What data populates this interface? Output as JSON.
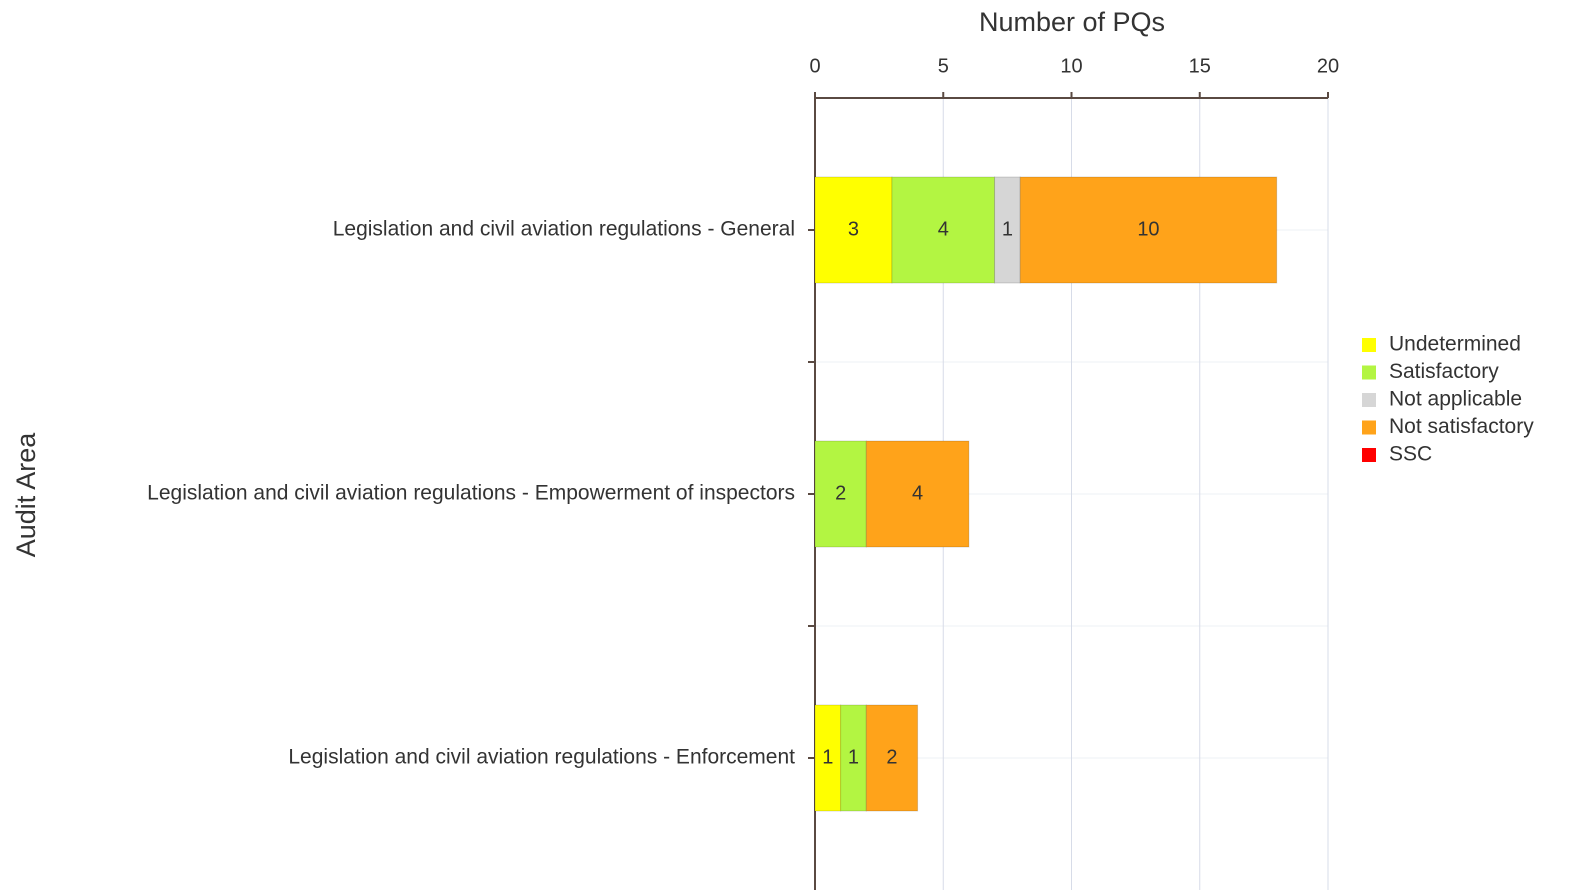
{
  "chart_data": {
    "type": "stacked-bar-horizontal",
    "title": "Number of PQs",
    "y_axis_label": "Audit Area",
    "categories": [
      "Legislation and civil aviation regulations - General",
      "Legislation and civil aviation regulations - Empowerment of inspectors",
      "Legislation and civil aviation regulations - Enforcement"
    ],
    "series": [
      {
        "name": "Undetermined",
        "color": "#ffff00",
        "values": [
          3,
          0,
          1
        ]
      },
      {
        "name": "Satisfactory",
        "color": "#b3f542",
        "values": [
          4,
          2,
          1
        ]
      },
      {
        "name": "Not applicable",
        "color": "#d6d6d6",
        "values": [
          1,
          0,
          0
        ]
      },
      {
        "name": "Not satisfactory",
        "color": "#ffa31a",
        "values": [
          10,
          4,
          2
        ]
      },
      {
        "name": "SSC",
        "color": "#ff0000",
        "values": [
          0,
          0,
          0
        ]
      }
    ],
    "xlim": [
      0,
      20
    ],
    "xticks": [
      0,
      5,
      10,
      15,
      20
    ],
    "grid": true,
    "legend": "right"
  }
}
